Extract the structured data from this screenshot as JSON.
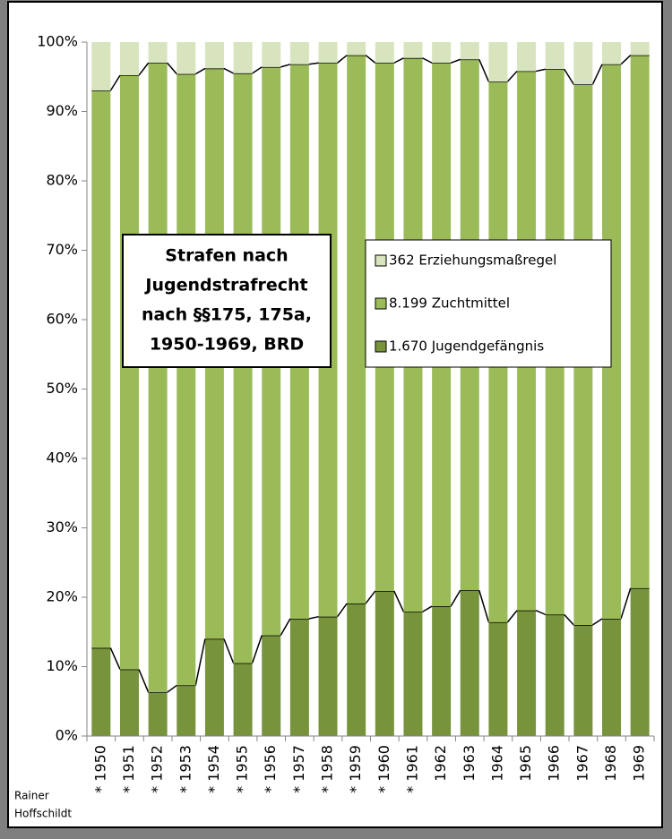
{
  "chart_data": {
    "type": "stacked_bar",
    "title": [
      "Strafen nach",
      "Jugendstrafrecht",
      "nach §§175, 175a,",
      "1950-1969, BRD"
    ],
    "credit": [
      "Rainer",
      "Hoffschildt"
    ],
    "categories": [
      "* 1950",
      "* 1951",
      "* 1952",
      "* 1953",
      "* 1954",
      "* 1955",
      "* 1956",
      "* 1957",
      "* 1958",
      "* 1959",
      "* 1960",
      "* 1961",
      "1962",
      "1963",
      "1964",
      "1965",
      "1966",
      "1967",
      "1968",
      "1969"
    ],
    "series": [
      {
        "name": "1.670 Jugendgefängnis",
        "color": "#77933c",
        "values": [
          12.7,
          9.6,
          6.3,
          7.3,
          14,
          10.5,
          14.5,
          16.9,
          17.2,
          19.1,
          20.9,
          17.9,
          18.7,
          21,
          16.4,
          18.1,
          17.5,
          16,
          16.9,
          21.3
        ]
      },
      {
        "name": "8.199 Zuchtmittel",
        "color": "#9bbb59",
        "values": [
          80.3,
          85.6,
          90.7,
          88.1,
          82.2,
          85,
          81.9,
          79.9,
          79.8,
          79,
          76.1,
          79.8,
          78.3,
          76.5,
          77.9,
          77.7,
          78.6,
          77.9,
          79.9,
          76.8
        ]
      },
      {
        "name": "362 Erziehungsmaßregel",
        "color": "#d7e4bd",
        "values": [
          7,
          4.8,
          3,
          4.6,
          3.8,
          4.5,
          3.6,
          3.2,
          3,
          1.9,
          3,
          2.3,
          3,
          2.5,
          5.7,
          4.2,
          3.9,
          6.1,
          3.2,
          1.9
        ]
      }
    ],
    "ylim": [
      0,
      100
    ],
    "yticks": [
      {
        "value": 0,
        "label": "0%"
      },
      {
        "value": 10,
        "label": "10%"
      },
      {
        "value": 20,
        "label": "20%"
      },
      {
        "value": 30,
        "label": "30%"
      },
      {
        "value": 40,
        "label": "40%"
      },
      {
        "value": 50,
        "label": "50%"
      },
      {
        "value": 60,
        "label": "60%"
      },
      {
        "value": 70,
        "label": "70%"
      },
      {
        "value": 80,
        "label": "80%"
      },
      {
        "value": 90,
        "label": "90%"
      },
      {
        "value": 100,
        "label": "100%"
      }
    ]
  }
}
